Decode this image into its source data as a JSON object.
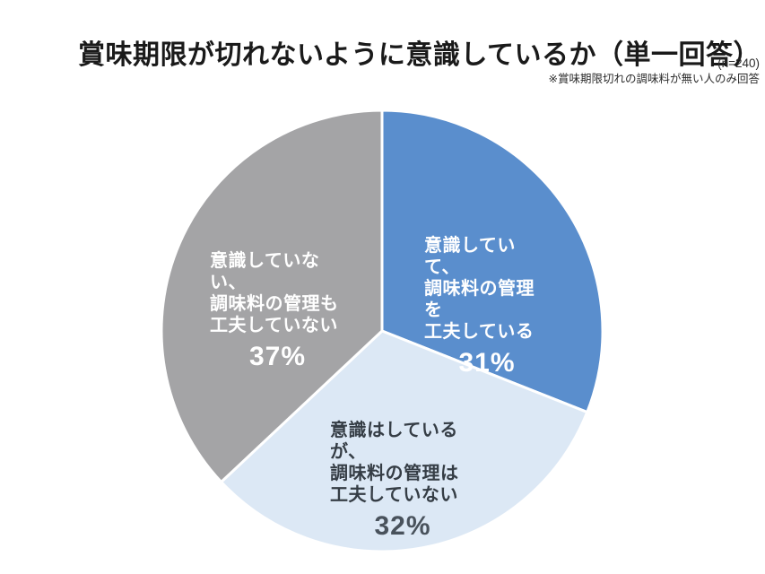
{
  "page": {
    "title": "賞味期限が切れないように意識しているか（単一回答）",
    "n_label": "(n=240)",
    "note": "※賞味期限切れの調味料が無い人のみ回答"
  },
  "chart_data": {
    "type": "pie",
    "title": "賞味期限が切れないように意識しているか（単一回答）",
    "sample_size_label": "(n=240)",
    "condition_note": "※賞味期限切れの調味料が無い人のみ回答",
    "start_angle_deg": 0,
    "direction": "clockwise",
    "border_color": "#FFFFFF",
    "categories": [
      "意識していて、調味料の管理を工夫している",
      "意識はしているが、調味料の管理は工夫していない",
      "意識していない、調味料の管理も工夫していない"
    ],
    "values": [
      31,
      32,
      37
    ],
    "slices": [
      {
        "label": "意識していて、調味料の管理を工夫している",
        "label_lines": "意識していて、\n調味料の管理を\n工夫している",
        "value_pct": 31,
        "pct_label": "31%",
        "color": "#5A8ECD",
        "text_color": "#FFFFFF",
        "pct_color": "#FFFFFF"
      },
      {
        "label": "意識はしているが、調味料の管理は工夫していない",
        "label_lines": "意識はしているが、\n調味料の管理は\n工夫していない",
        "value_pct": 32,
        "pct_label": "32%",
        "color": "#DCE8F5",
        "text_color": "#353D45",
        "pct_color": "#49525C"
      },
      {
        "label": "意識していない、調味料の管理も工夫していない",
        "label_lines": "意識していない、\n調味料の管理も\n工夫していない",
        "value_pct": 37,
        "pct_label": "37%",
        "color": "#A4A4A6",
        "text_color": "#FFFFFF",
        "pct_color": "#FFFFFF"
      }
    ]
  }
}
